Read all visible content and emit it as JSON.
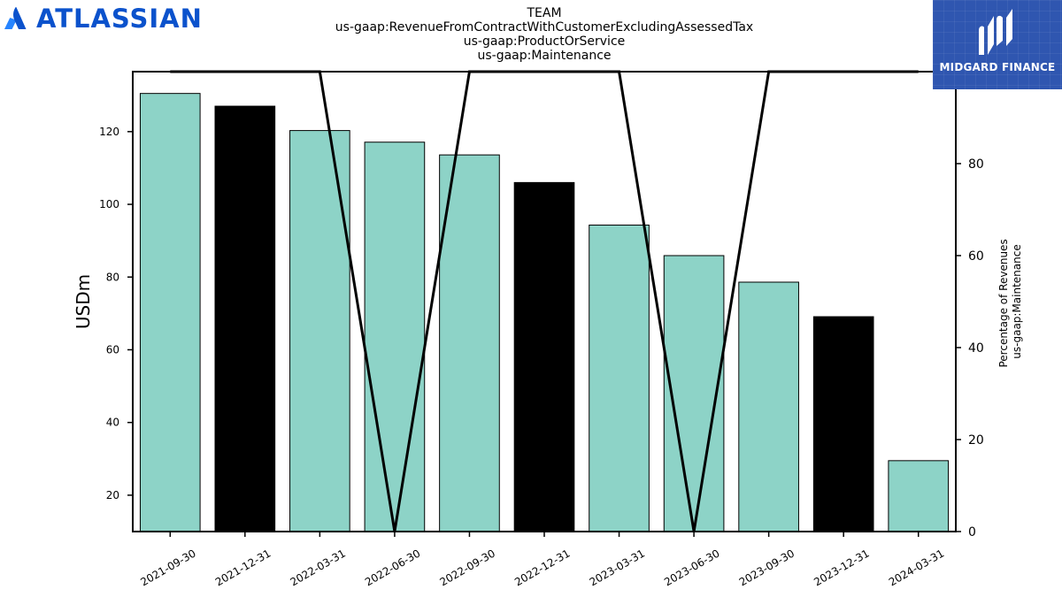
{
  "header": {
    "left_logo": {
      "text": "ATLASSIAN",
      "color": "#0b52cc",
      "icon": "atlassian-mark-icon"
    },
    "right_logo": {
      "text": "MIDGARD FINANCE",
      "background": "#2f56b0",
      "icon": "midgard-m-icon"
    }
  },
  "chart_data": {
    "type": "bar",
    "title": [
      "TEAM",
      "us-gaap:RevenueFromContractWithCustomerExcludingAssessedTax",
      "us-gaap:ProductOrService",
      "us-gaap:Maintenance"
    ],
    "ylabel": "USDm",
    "y2label": [
      "Percentage of Revenues",
      "us-gaap:Maintenance"
    ],
    "categories": [
      "2021-09-30",
      "2021-12-31",
      "2022-03-31",
      "2022-06-30",
      "2022-09-30",
      "2022-12-31",
      "2023-03-31",
      "2023-06-30",
      "2023-09-30",
      "2023-12-31",
      "2024-03-31"
    ],
    "values": [
      130.5,
      127,
      120.3,
      117.1,
      113.6,
      106,
      94.3,
      85.9,
      78.6,
      69.1,
      29.5
    ],
    "bar_colors": [
      "#8dd3c7",
      "#000000",
      "#8dd3c7",
      "#8dd3c7",
      "#8dd3c7",
      "#000000",
      "#8dd3c7",
      "#8dd3c7",
      "#8dd3c7",
      "#000000",
      "#8dd3c7"
    ],
    "ylim": [
      10,
      136.5
    ],
    "yticks": [
      20,
      40,
      60,
      80,
      100,
      120
    ],
    "line": {
      "axis": "secondary",
      "values": [
        100,
        100,
        100,
        0,
        100,
        100,
        100,
        0,
        100,
        100,
        100
      ],
      "color": "#000000"
    },
    "y2lim": [
      0,
      100
    ],
    "y2ticks": [
      0,
      20,
      40,
      60,
      80,
      100
    ],
    "grid": false,
    "legend": "none"
  }
}
